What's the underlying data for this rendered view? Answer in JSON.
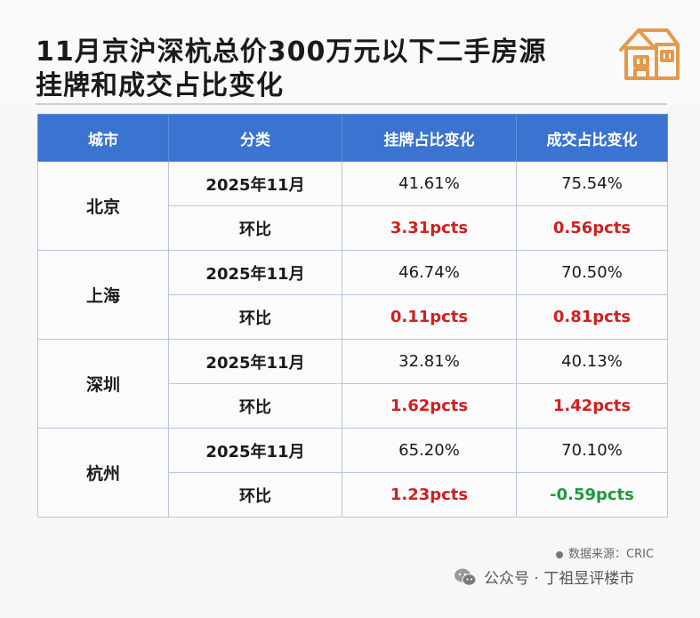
{
  "title": "11月京沪深杭总价300万元以下二手房源\n挂牌和成交占比变化",
  "table": {
    "headers": [
      "城市",
      "分类",
      "挂牌占比变化",
      "成交占比变化"
    ],
    "rows": [
      {
        "city": "北京",
        "month": "2025年11月",
        "listing": "41.61%",
        "deal": "75.54%",
        "mom_label": "环比",
        "listing_mom": "3.31pcts",
        "deal_mom": "0.56pcts"
      },
      {
        "city": "上海",
        "month": "2025年11月",
        "listing": "46.74%",
        "deal": "70.50%",
        "mom_label": "环比",
        "listing_mom": "0.11pcts",
        "deal_mom": "0.81pcts"
      },
      {
        "city": "深圳",
        "month": "2025年11月",
        "listing": "32.81%",
        "deal": "40.13%",
        "mom_label": "环比",
        "listing_mom": "1.62pcts",
        "deal_mom": "1.42pcts"
      },
      {
        "city": "杭州",
        "month": "2025年11月",
        "listing": "65.20%",
        "deal": "70.10%",
        "mom_label": "环比",
        "listing_mom": "1.23pcts",
        "deal_mom": "-0.59pcts"
      }
    ]
  },
  "source": "数据来源：CRIC",
  "footer": "公众号 · 丁祖昱评楼市",
  "colors": {
    "header_blue": "#3b74d0",
    "positive_red": "#d21f1f",
    "negative_green": "#1e9a3c",
    "icon_orange": "#e39a4c"
  }
}
